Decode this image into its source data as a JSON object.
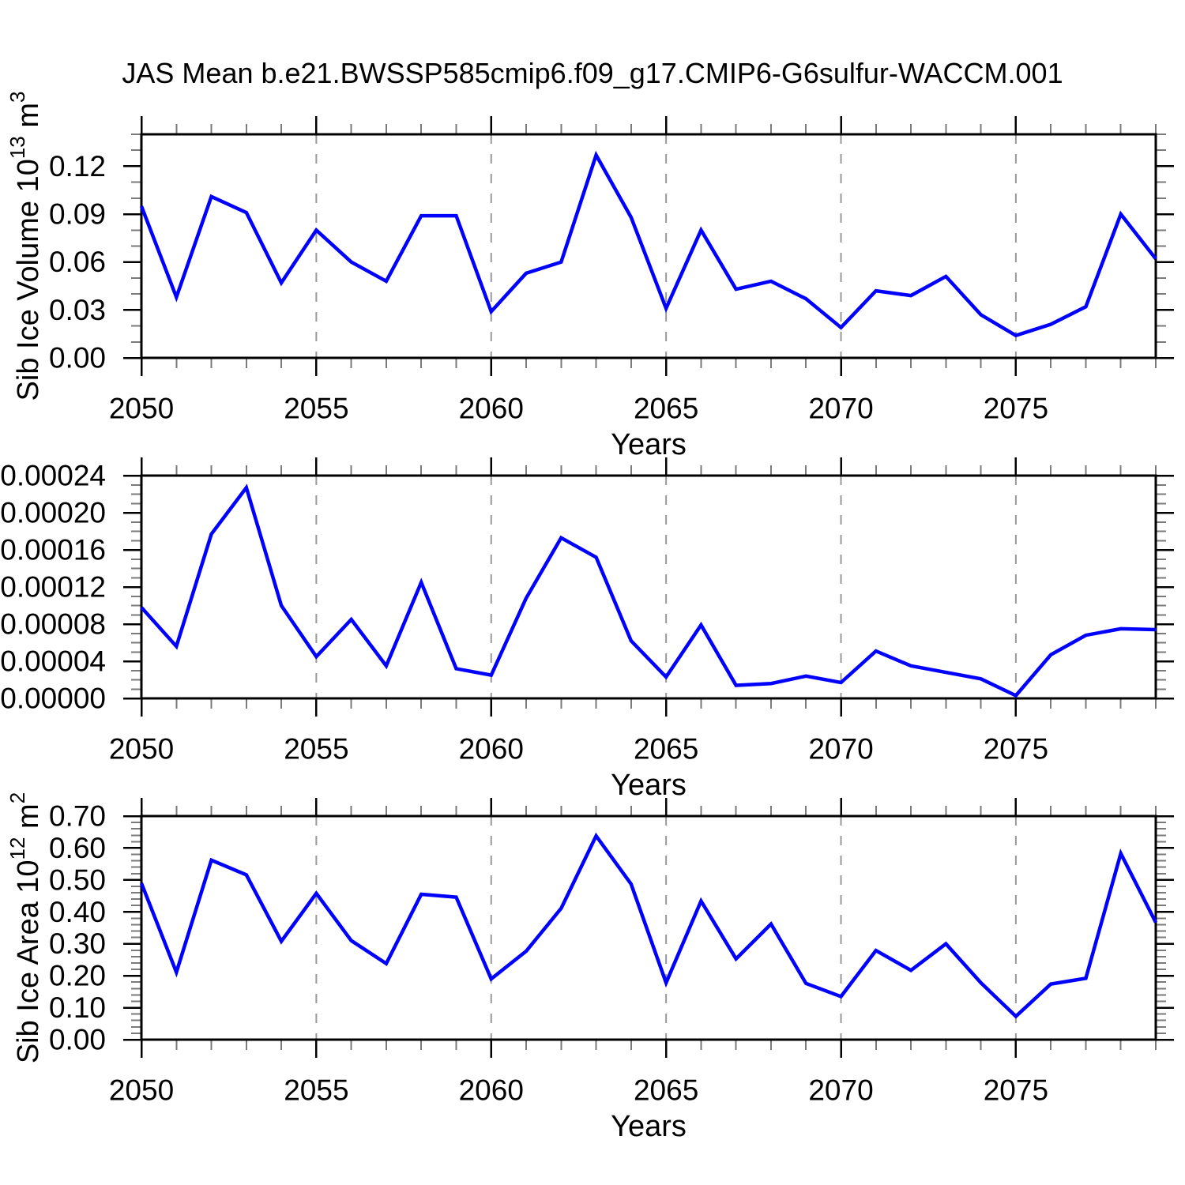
{
  "title": "JAS Mean b.e21.BWSSP585cmip6.f09_g17.CMIP6-G6sulfur-WACCM.001",
  "style": {
    "line_color": "#0000ff",
    "grid_color": "#999999",
    "frame_color": "#000000",
    "minor_tick_color": "#7a7a7a",
    "text_color": "#000000",
    "background": "#ffffff"
  },
  "x_axis": {
    "label": "Years",
    "min": 2050,
    "max": 2079,
    "major_step": 5,
    "minor_step": 1,
    "tick_labels": [
      "2050",
      "2055",
      "2060",
      "2065",
      "2070",
      "2075"
    ],
    "grid_years": [
      2055,
      2060,
      2065,
      2070,
      2075
    ],
    "grid_dashed": true
  },
  "chart_data": [
    {
      "type": "line",
      "name": "sib-ice-volume",
      "ylabel": "Sib Ice Volume 10^13 m^3",
      "ylabel_parts": [
        {
          "text": "Sib Ice Volume 10"
        },
        {
          "text": "13",
          "sup": true
        },
        {
          "text": " m"
        },
        {
          "text": "3",
          "sup": true
        }
      ],
      "ylim": [
        0,
        0.14
      ],
      "ytick_major": 0.03,
      "ytick_minor": 0.01,
      "y_decimals": 2,
      "ytick_labels": [
        "0.00",
        "0.03",
        "0.06",
        "0.09",
        "0.12"
      ],
      "x": [
        2050,
        2051,
        2052,
        2053,
        2054,
        2055,
        2056,
        2057,
        2058,
        2059,
        2060,
        2061,
        2062,
        2063,
        2064,
        2065,
        2066,
        2067,
        2068,
        2069,
        2070,
        2071,
        2072,
        2073,
        2074,
        2075,
        2076,
        2077,
        2078,
        2079
      ],
      "values": [
        0.095,
        0.038,
        0.101,
        0.091,
        0.047,
        0.08,
        0.06,
        0.048,
        0.089,
        0.089,
        0.029,
        0.053,
        0.06,
        0.127,
        0.088,
        0.031,
        0.08,
        0.043,
        0.048,
        0.037,
        0.019,
        0.042,
        0.039,
        0.051,
        0.027,
        0.014,
        0.021,
        0.032,
        0.09,
        0.062
      ]
    },
    {
      "type": "line",
      "name": "sib-ice-middle-series",
      "ylabel": "",
      "ylabel_parts": null,
      "ylim": [
        0,
        0.00024
      ],
      "ytick_major": 4e-05,
      "ytick_minor": 1e-05,
      "y_decimals": 5,
      "ytick_labels": [
        "0.00000",
        "0.00004",
        "0.00008",
        "0.00012",
        "0.00016",
        "0.00020",
        "0.00024"
      ],
      "x": [
        2050,
        2051,
        2052,
        2053,
        2054,
        2055,
        2056,
        2057,
        2058,
        2059,
        2060,
        2061,
        2062,
        2063,
        2064,
        2065,
        2066,
        2067,
        2068,
        2069,
        2070,
        2071,
        2072,
        2073,
        2074,
        2075,
        2076,
        2077,
        2078,
        2079
      ],
      "values": [
        9.8e-05,
        5.6e-05,
        0.000177,
        0.000227,
        0.0001,
        4.5e-05,
        8.5e-05,
        3.5e-05,
        0.000125,
        3.2e-05,
        2.5e-05,
        0.000108,
        0.000173,
        0.000152,
        6.2e-05,
        2.3e-05,
        7.9e-05,
        1.4e-05,
        1.6e-05,
        2.4e-05,
        1.7e-05,
        5.1e-05,
        3.5e-05,
        2.8e-05,
        2.1e-05,
        3e-06,
        4.7e-05,
        6.8e-05,
        7.5e-05,
        7.4e-05
      ]
    },
    {
      "type": "line",
      "name": "sib-ice-area",
      "ylabel": "Sib Ice Area 10^12 m^2",
      "ylabel_parts": [
        {
          "text": "Sib Ice Area 10"
        },
        {
          "text": "12",
          "sup": true
        },
        {
          "text": " m"
        },
        {
          "text": "2",
          "sup": true
        }
      ],
      "ylim": [
        0,
        0.7
      ],
      "ytick_major": 0.1,
      "ytick_minor": 0.02,
      "y_decimals": 2,
      "ytick_labels": [
        "0.00",
        "0.10",
        "0.20",
        "0.30",
        "0.40",
        "0.50",
        "0.60",
        "0.70"
      ],
      "x": [
        2050,
        2051,
        2052,
        2053,
        2054,
        2055,
        2056,
        2057,
        2058,
        2059,
        2060,
        2061,
        2062,
        2063,
        2064,
        2065,
        2066,
        2067,
        2068,
        2069,
        2070,
        2071,
        2072,
        2073,
        2074,
        2075,
        2076,
        2077,
        2078,
        2079
      ],
      "values": [
        0.49,
        0.211,
        0.562,
        0.516,
        0.308,
        0.458,
        0.31,
        0.238,
        0.455,
        0.446,
        0.19,
        0.277,
        0.411,
        0.638,
        0.487,
        0.178,
        0.434,
        0.253,
        0.362,
        0.176,
        0.135,
        0.279,
        0.217,
        0.3,
        0.178,
        0.073,
        0.174,
        0.192,
        0.583,
        0.367
      ]
    }
  ]
}
